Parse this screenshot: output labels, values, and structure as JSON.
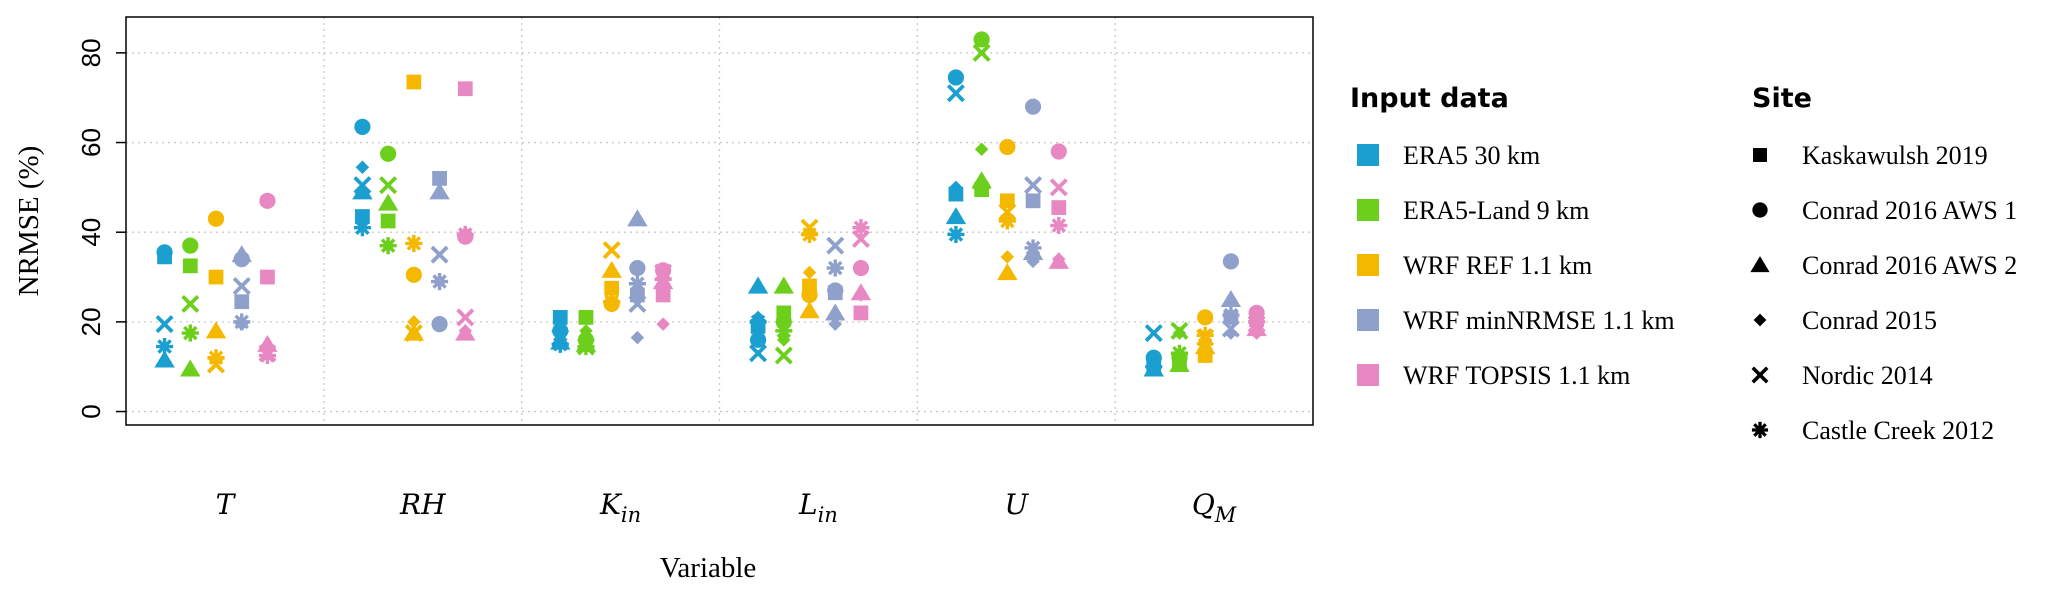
{
  "chart_data": {
    "type": "scatter",
    "ylabel": "NRMSE (%)",
    "xlabel": "Variable",
    "ylim": [
      -3,
      88
    ],
    "yticks": [
      "0",
      "20",
      "40",
      "60",
      "80"
    ],
    "grid": true,
    "categories": [
      {
        "base": "T",
        "sub": ""
      },
      {
        "base": "RH",
        "sub": ""
      },
      {
        "base": "K",
        "sub": "in"
      },
      {
        "base": "L",
        "sub": "in"
      },
      {
        "base": "U",
        "sub": ""
      },
      {
        "base": "Q",
        "sub": "M"
      }
    ],
    "legend_input_title": "Input data",
    "legend_site_title": "Site",
    "series": [
      {
        "name": "ERA5 30 km",
        "color": "#1b9fd0",
        "values": [
          [
            34.5,
            35.5,
            11.5,
            null,
            19.5,
            14.5
          ],
          [
            43.5,
            63.5,
            49.0,
            54.5,
            50.5,
            41.0
          ],
          [
            21.0,
            18.0,
            15.5,
            17.5,
            16.5,
            15.0
          ],
          [
            19.0,
            16.0,
            28.0,
            21.0,
            13.0,
            20.0
          ],
          [
            48.5,
            74.5,
            43.5,
            50.0,
            71.0,
            39.5
          ],
          [
            10.0,
            12.0,
            9.5,
            11.0,
            17.5,
            10.0
          ]
        ]
      },
      {
        "name": "ERA5-Land 9 km",
        "color": "#6ccf1c",
        "values": [
          [
            32.5,
            37.0,
            9.5,
            null,
            24.0,
            17.5
          ],
          [
            42.5,
            57.5,
            46.5,
            37.0,
            50.5,
            37.0
          ],
          [
            21.0,
            16.0,
            15.0,
            18.0,
            14.5,
            14.5
          ],
          [
            22.0,
            20.0,
            28.0,
            16.0,
            12.5,
            18.0
          ],
          [
            49.5,
            83.0,
            51.5,
            58.5,
            80.0,
            50.0
          ],
          [
            10.5,
            12.0,
            10.5,
            17.5,
            18.0,
            13.0
          ]
        ]
      },
      {
        "name": "WRF REF 1.1 km",
        "color": "#f5b800",
        "values": [
          [
            30.0,
            43.0,
            18.0,
            11.5,
            10.5,
            12.0
          ],
          [
            73.5,
            30.5,
            17.5,
            20.0,
            17.5,
            37.5
          ],
          [
            27.5,
            24.0,
            31.5,
            27.0,
            36.0,
            24.5
          ],
          [
            28.0,
            26.0,
            22.5,
            31.0,
            41.0,
            39.5
          ],
          [
            47.0,
            59.0,
            31.0,
            34.5,
            44.5,
            42.5
          ],
          [
            12.5,
            21.0,
            14.5,
            16.0,
            16.5,
            17.0
          ]
        ]
      },
      {
        "name": "WRF minNRMSE 1.1 km",
        "color": "#8fa0cb",
        "values": [
          [
            24.5,
            34.0,
            35.0,
            19.5,
            28.0,
            20.0
          ],
          [
            52.0,
            19.5,
            49.0,
            29.0,
            35.0,
            29.0
          ],
          [
            26.0,
            32.0,
            43.0,
            16.5,
            24.0,
            28.5
          ],
          [
            26.5,
            27.0,
            22.0,
            19.5,
            37.0,
            32.0
          ],
          [
            47.0,
            68.0,
            35.5,
            33.5,
            50.5,
            36.5
          ],
          [
            21.0,
            33.5,
            25.0,
            17.5,
            18.5,
            21.5
          ]
        ]
      },
      {
        "name": "WRF TOPSIS 1.1 km",
        "color": "#e888c3",
        "values": [
          [
            30.0,
            47.0,
            15.0,
            14.0,
            13.0,
            12.5
          ],
          [
            72.0,
            39.0,
            17.5,
            18.0,
            21.0,
            39.5
          ],
          [
            26.0,
            31.5,
            29.0,
            19.5,
            31.0,
            29.5
          ],
          [
            22.0,
            32.0,
            26.5,
            26.0,
            38.5,
            41.0
          ],
          [
            45.5,
            58.0,
            33.5,
            34.0,
            50.0,
            41.5
          ],
          [
            20.5,
            22.0,
            18.5,
            17.5,
            19.5,
            20.0
          ]
        ]
      }
    ],
    "sites": [
      {
        "name": "Kaskawulsh 2019",
        "shape": "square"
      },
      {
        "name": "Conrad 2016 AWS 1",
        "shape": "circle"
      },
      {
        "name": "Conrad 2016 AWS 2",
        "shape": "triangle"
      },
      {
        "name": "Conrad 2015",
        "shape": "diamond"
      },
      {
        "name": "Nordic 2014",
        "shape": "cross"
      },
      {
        "name": "Castle Creek 2012",
        "shape": "asterisk"
      }
    ]
  }
}
